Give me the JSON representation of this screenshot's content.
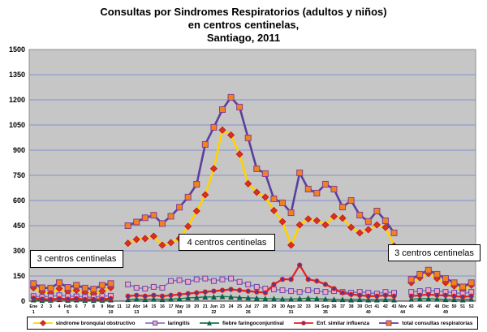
{
  "title": {
    "line1": "Consultas por Sindromes Respiratorios (adultos y niños)",
    "line2": "en centros centinelas,",
    "line3": "Santiago, 2011"
  },
  "annotations": [
    {
      "text": "3 centros centinelas"
    },
    {
      "text": "4 centros centinelas"
    },
    {
      "text": "3 centros centinelas"
    }
  ],
  "chart_data": {
    "type": "line",
    "title": "Consultas por Sindromes Respiratorios (adultos y niños) en centros centinelas, Santiago, 2011",
    "legend_position": "bottom",
    "grid": true,
    "colors": {
      "plot_bg": "#c6c6c6",
      "gridline": "#8093cf",
      "plot_border": "#8c8c8c"
    },
    "y_axis": {
      "min": 0,
      "max": 1500,
      "step": 150
    },
    "x_axis": {
      "labels": [
        "Ene",
        "2",
        "3",
        "4",
        "Feb",
        "6",
        "7",
        "8",
        "9",
        "Mar",
        "11",
        "12",
        "Abr",
        "14",
        "15",
        "16",
        "17",
        "May",
        "19",
        "20",
        "21",
        "Jun",
        "23",
        "24",
        "25",
        "Jul",
        "27",
        "28",
        "29",
        "30",
        "Ago",
        "32",
        "33",
        "34",
        "Sep",
        "36",
        "37",
        "38",
        "39",
        "Oct",
        "41",
        "42",
        "43",
        "Nov",
        "45",
        "46",
        "47",
        "48",
        "Dic",
        "50",
        "51",
        "52"
      ],
      "month_weeks": {
        "Ene": "1",
        "Feb": "5",
        "Mar": "10",
        "Abr": "13",
        "May": "18",
        "Jun": "22",
        "Jul": "26",
        "Ago": "31",
        "Sep": "35",
        "Oct": "40",
        "Nov": "44",
        "Dic": "49"
      }
    },
    "series": [
      {
        "id": "sindrome-bronquial-obstructivo",
        "name": "sindrome bronquial obstructivo",
        "line_color": "#ffd200",
        "line_width": 2.6,
        "marker": "diamond",
        "marker_fill": "#d93025",
        "marker_stroke": "#c21807",
        "marker_size": 5.6,
        "values": [
          80,
          55,
          48,
          75,
          58,
          65,
          50,
          45,
          60,
          80,
          null,
          345,
          368,
          373,
          387,
          334,
          349,
          373,
          446,
          537,
          634,
          790,
          1020,
          990,
          876,
          700,
          649,
          620,
          540,
          474,
          334,
          455,
          490,
          480,
          455,
          505,
          495,
          440,
          407,
          426,
          455,
          440,
          329,
          null,
          110,
          140,
          165,
          135,
          110,
          90,
          65,
          95
        ]
      },
      {
        "id": "laringitis",
        "name": "laringitis",
        "line_color": "#8677c8",
        "line_width": 1.6,
        "marker": "square",
        "marker_fill": "#f4a6bd",
        "marker_stroke": "#5b4bad",
        "marker_size": 6,
        "values": [
          30,
          25,
          28,
          35,
          30,
          28,
          25,
          22,
          30,
          32,
          null,
          100,
          80,
          75,
          85,
          80,
          120,
          125,
          115,
          130,
          135,
          120,
          130,
          135,
          115,
          100,
          85,
          75,
          70,
          65,
          60,
          55,
          65,
          60,
          55,
          60,
          55,
          50,
          55,
          50,
          45,
          55,
          50,
          null,
          55,
          60,
          65,
          60,
          55,
          50,
          45,
          55
        ]
      },
      {
        "id": "fiebre-faringoconjuntival",
        "name": "fiebre faringoconjuntival",
        "line_color": "#1b7a46",
        "line_width": 1.4,
        "marker": "triangle",
        "marker_fill": "#0e6655",
        "marker_stroke": "#0a4f42",
        "marker_size": 5.6,
        "values": [
          8,
          5,
          6,
          10,
          6,
          8,
          5,
          5,
          6,
          8,
          null,
          10,
          12,
          10,
          12,
          10,
          12,
          15,
          20,
          22,
          25,
          25,
          28,
          25,
          22,
          20,
          18,
          15,
          15,
          12,
          12,
          15,
          18,
          15,
          12,
          10,
          10,
          8,
          10,
          8,
          8,
          10,
          8,
          null,
          12,
          15,
          15,
          12,
          10,
          10,
          8,
          12
        ]
      },
      {
        "id": "enf-similar-influenza",
        "name": "Enf. similar influenza",
        "line_color": "#e21f1f",
        "line_width": 2.2,
        "marker": "circle",
        "marker_fill": "#3e3ea6",
        "marker_stroke": "#e21f1f",
        "marker_size": 5,
        "values": [
          18,
          12,
          10,
          15,
          12,
          15,
          10,
          10,
          12,
          15,
          null,
          30,
          35,
          30,
          35,
          30,
          35,
          40,
          45,
          50,
          55,
          60,
          65,
          70,
          65,
          60,
          55,
          50,
          100,
          130,
          130,
          215,
          130,
          120,
          100,
          75,
          50,
          40,
          35,
          30,
          30,
          35,
          30,
          null,
          30,
          35,
          40,
          35,
          35,
          30,
          25,
          30
        ]
      },
      {
        "id": "total-consultas-respiratorias",
        "name": "total consultas respiratorias",
        "line_color": "#5b3f9e",
        "line_width": 2.6,
        "marker": "square",
        "marker_fill": "#f0831e",
        "marker_stroke": "#8a3e8f",
        "marker_size": 7,
        "values": [
          105,
          80,
          78,
          110,
          82,
          95,
          78,
          72,
          95,
          105,
          null,
          450,
          472,
          497,
          512,
          463,
          506,
          560,
          620,
          697,
          934,
          1036,
          1142,
          1215,
          1157,
          973,
          789,
          760,
          610,
          586,
          527,
          765,
          668,
          644,
          697,
          668,
          561,
          600,
          513,
          475,
          537,
          479,
          407,
          null,
          130,
          160,
          185,
          160,
          135,
          110,
          85,
          110
        ]
      }
    ]
  }
}
